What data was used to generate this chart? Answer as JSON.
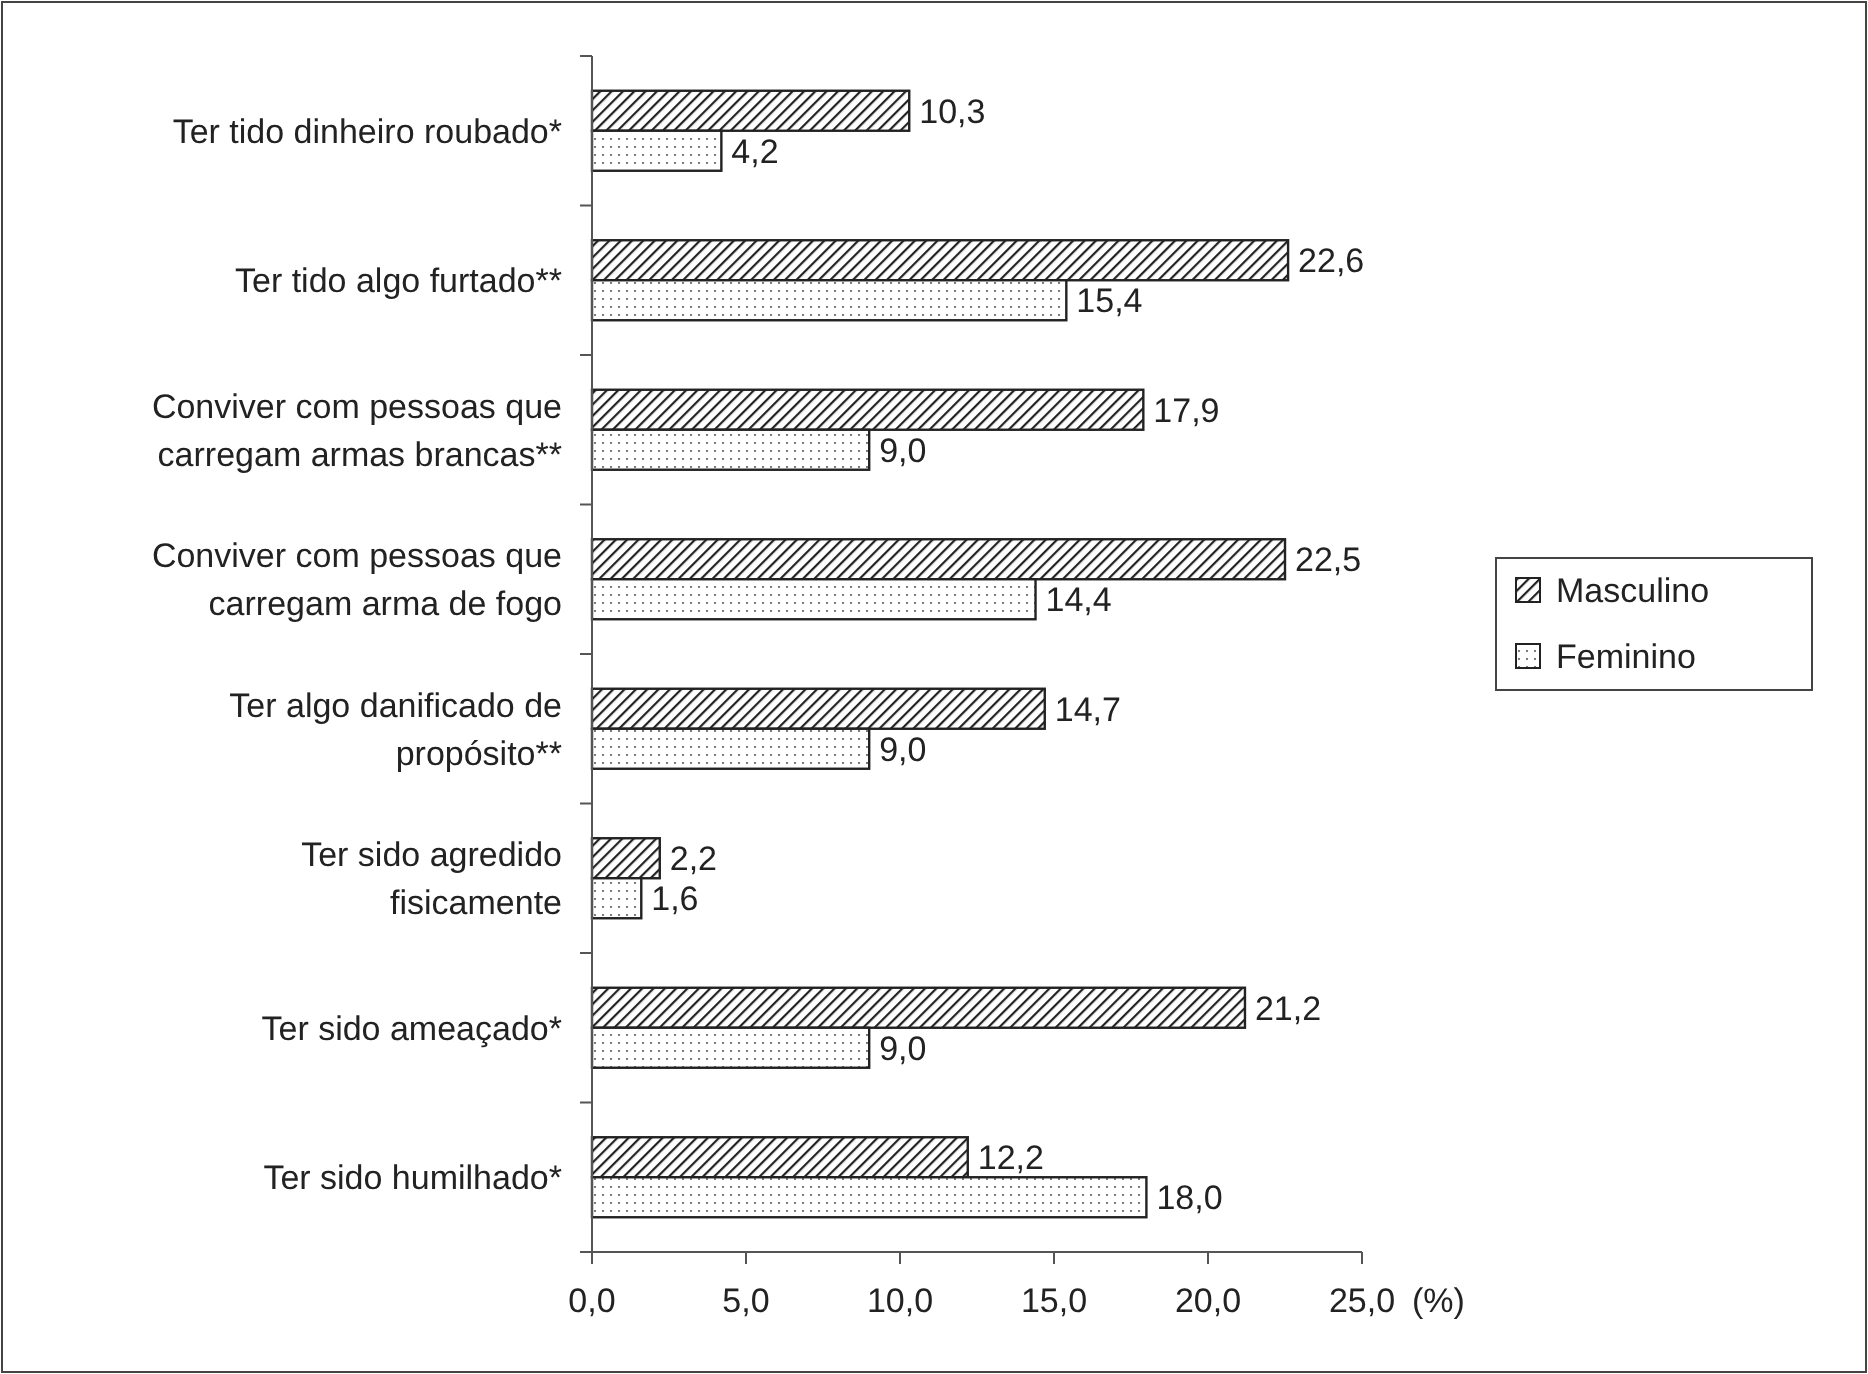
{
  "chart_data": {
    "type": "bar",
    "orientation": "horizontal",
    "categories": [
      "Ter tido dinheiro roubado*",
      "Ter tido algo furtado**",
      "Conviver com pessoas que carregam armas brancas**",
      "Conviver com pessoas que carregam arma de fogo",
      "Ter algo danificado de propósito**",
      "Ter sido agredido fisicamente",
      "Ter sido ameaçado*",
      "Ter sido humilhado*"
    ],
    "series": [
      {
        "name": "Masculino",
        "color": "#222222",
        "values": [
          10.3,
          22.6,
          17.9,
          22.5,
          14.7,
          2.2,
          21.2,
          12.2
        ],
        "value_labels": [
          "10,3",
          "22,6",
          "17,9",
          "22,5",
          "14,7",
          "2,2",
          "21,2",
          "12,2"
        ]
      },
      {
        "name": "Feminino",
        "color": "#222222",
        "values": [
          4.2,
          15.4,
          9.0,
          14.4,
          9.0,
          1.6,
          9.0,
          18.0
        ],
        "value_labels": [
          "4,2",
          "15,4",
          "9,0",
          "14,4",
          "9,0",
          "1,6",
          "9,0",
          "18,0"
        ]
      }
    ],
    "xlabel": "(%)",
    "xlim": [
      0,
      25
    ],
    "xticks": [
      {
        "value": 0,
        "label": "0,0"
      },
      {
        "value": 5,
        "label": "5,0"
      },
      {
        "value": 10,
        "label": "10,0"
      },
      {
        "value": 15,
        "label": "15,0"
      },
      {
        "value": 20,
        "label": "20,0"
      },
      {
        "value": 25,
        "label": "25,0"
      }
    ],
    "grid": false,
    "legend": "right"
  }
}
